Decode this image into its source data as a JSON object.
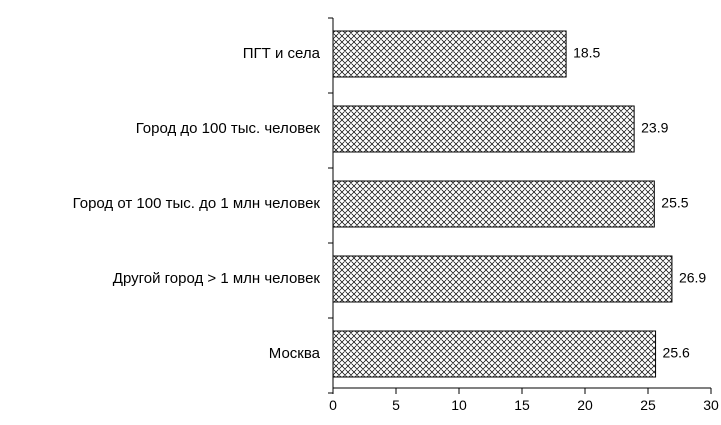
{
  "chart_data": {
    "type": "bar",
    "orientation": "horizontal",
    "categories": [
      "ПГТ и села",
      "Город до 100 тыс. человек",
      "Город от 100 тыс. до 1 млн человек",
      "Другой город > 1 млн человек",
      "Москва"
    ],
    "values": [
      18.5,
      23.9,
      25.5,
      26.9,
      25.6
    ],
    "value_labels": [
      "18.5",
      "23.9",
      "25.5",
      "26.9",
      "25.6"
    ],
    "xlim": [
      0,
      30
    ],
    "xticks": [
      0,
      5,
      10,
      15,
      20,
      25,
      30
    ],
    "xtick_labels": [
      "0",
      "5",
      "10",
      "15",
      "20",
      "25",
      "30"
    ],
    "title": "",
    "xlabel": "",
    "ylabel": "",
    "grid": false,
    "legend": "none",
    "bar_fill": "crosshatch",
    "bar_color": "#000000"
  }
}
